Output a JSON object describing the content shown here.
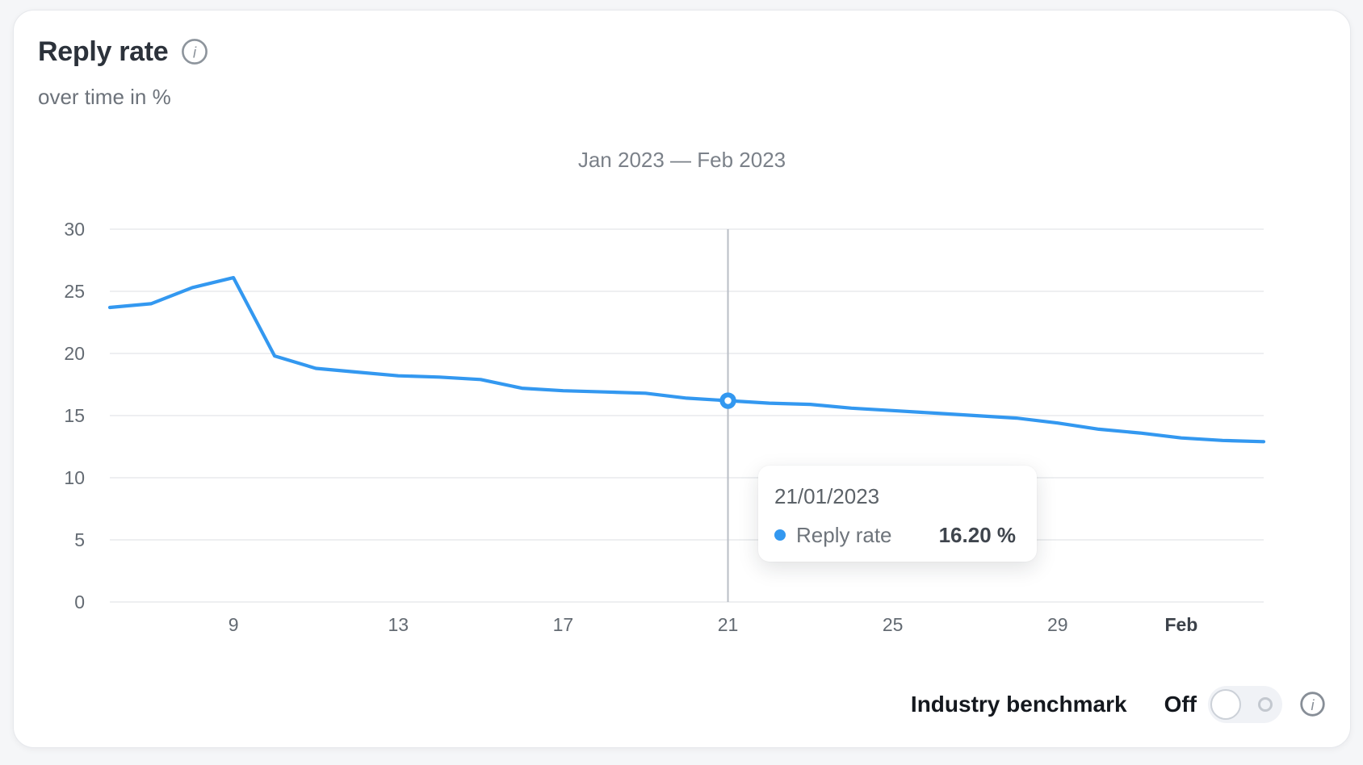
{
  "card": {
    "title": "Reply rate",
    "subtitle": "over time in %",
    "range_title": "Jan 2023 — Feb 2023"
  },
  "tooltip": {
    "date": "21/01/2023",
    "series": "Reply rate",
    "value": "16.20 %"
  },
  "benchmark": {
    "label": "Industry benchmark",
    "state": "Off"
  },
  "icons": {
    "title_info": "info-circle",
    "benchmark_info": "info-circle",
    "toggle": "switch-off"
  },
  "colors": {
    "line": "#3398f0",
    "grid": "#ebedef",
    "crosshair": "#b9bec6",
    "axis_text": "#636a72",
    "axis_text_bold": "#3c424a",
    "tooltip_dot": "#3398f0",
    "card_background": "#ffffff",
    "page_background": "#f5f6f8"
  },
  "chart_data": {
    "type": "line",
    "title": "Jan 2023 — Feb 2023",
    "xlabel": "",
    "ylabel": "Reply rate over time in %",
    "ylim": [
      0,
      30
    ],
    "y_ticks": [
      0,
      5,
      10,
      15,
      20,
      25,
      30
    ],
    "grid": "horizontal",
    "legend_position": "tooltip",
    "x_ticks": [
      {
        "label": "9",
        "index": 3,
        "bold": false
      },
      {
        "label": "13",
        "index": 7,
        "bold": false
      },
      {
        "label": "17",
        "index": 11,
        "bold": false
      },
      {
        "label": "21",
        "index": 15,
        "bold": false
      },
      {
        "label": "25",
        "index": 19,
        "bold": false
      },
      {
        "label": "29",
        "index": 23,
        "bold": false
      },
      {
        "label": "Feb",
        "index": 26,
        "bold": true
      }
    ],
    "x": [
      "06/01/2023",
      "07/01/2023",
      "08/01/2023",
      "09/01/2023",
      "10/01/2023",
      "11/01/2023",
      "12/01/2023",
      "13/01/2023",
      "14/01/2023",
      "15/01/2023",
      "16/01/2023",
      "17/01/2023",
      "18/01/2023",
      "19/01/2023",
      "20/01/2023",
      "21/01/2023",
      "22/01/2023",
      "23/01/2023",
      "24/01/2023",
      "25/01/2023",
      "26/01/2023",
      "27/01/2023",
      "28/01/2023",
      "29/01/2023",
      "30/01/2023",
      "31/01/2023",
      "01/02/2023",
      "02/02/2023",
      "03/02/2023"
    ],
    "series": [
      {
        "name": "Reply rate",
        "values": [
          23.7,
          24.0,
          25.3,
          26.1,
          19.8,
          18.8,
          18.5,
          18.2,
          18.1,
          17.9,
          17.2,
          17.0,
          16.9,
          16.8,
          16.4,
          16.2,
          16.0,
          15.9,
          15.6,
          15.4,
          15.2,
          15.0,
          14.8,
          14.4,
          13.9,
          13.6,
          13.2,
          13.0,
          12.9
        ]
      }
    ],
    "highlight": {
      "index": 15,
      "date": "21/01/2023",
      "value": 16.2
    }
  }
}
